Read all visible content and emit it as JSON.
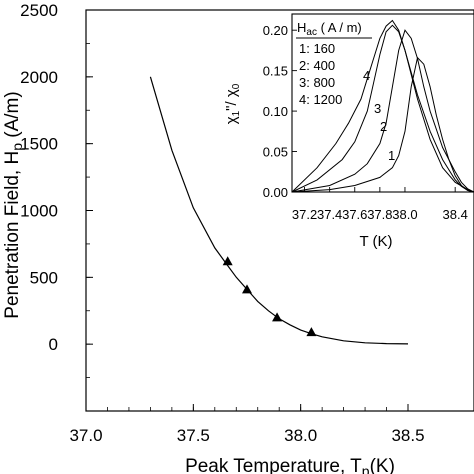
{
  "chart_data": [
    {
      "type": "line",
      "xlabel": "Peak Temperature, T",
      "xlabel_sub": "p",
      "xlabel_unit": "(K)",
      "ylabel": "Penetration Field, H",
      "ylabel_sub": "p",
      "ylabel_unit": " (A/m)",
      "xlim": [
        37.0,
        38.5
      ],
      "ylim": [
        -500,
        2500
      ],
      "xticks": [
        "37.0",
        "37.5",
        "38.0",
        "38.5"
      ],
      "yticks": [
        "0",
        "500",
        "1000",
        "1500",
        "2000",
        "2500"
      ],
      "grid": false,
      "series": [
        {
          "kind": "fit-curve",
          "x": [
            37.3,
            37.4,
            37.5,
            37.6,
            37.65,
            37.7,
            37.75,
            37.8,
            37.85,
            37.9,
            37.95,
            38.0,
            38.05,
            38.1,
            38.2,
            38.3,
            38.4,
            38.5
          ],
          "y": [
            2000,
            1450,
            1020,
            720,
            610,
            500,
            410,
            320,
            250,
            190,
            145,
            105,
            78,
            55,
            25,
            10,
            4,
            2
          ]
        },
        {
          "kind": "markers",
          "marker": "triangle",
          "x": [
            37.66,
            37.75,
            37.89,
            38.05
          ],
          "y": [
            620,
            410,
            200,
            90
          ]
        }
      ]
    },
    {
      "type": "line",
      "inset": true,
      "xlabel": "T (K)",
      "ylabel": "χ\"/χ",
      "ylabel_sub1": "1",
      "ylabel_sub2": "0",
      "xlim": [
        37.1,
        38.55
      ],
      "ylim": [
        0.0,
        0.22
      ],
      "xticks": [
        "37.2",
        "37.4",
        "37.6",
        "37.8",
        "38.0",
        "38.4"
      ],
      "yticks": [
        "0.00",
        "0.05",
        "0.10",
        "0.15",
        "0.20"
      ],
      "legend": {
        "title": "H",
        "title_sub": "ac",
        "title_unit": " ( A / m)",
        "entries": [
          "1: 160",
          "2: 400",
          "3: 800",
          "4: 1200"
        ]
      },
      "series": [
        {
          "name": "1",
          "x": [
            37.1,
            37.4,
            37.6,
            37.8,
            37.9,
            37.95,
            38.0,
            38.05,
            38.1,
            38.15,
            38.2,
            38.25,
            38.3,
            38.35,
            38.4,
            38.45,
            38.5,
            38.55
          ],
          "y": [
            0.0,
            0.003,
            0.008,
            0.018,
            0.03,
            0.045,
            0.075,
            0.13,
            0.166,
            0.158,
            0.13,
            0.095,
            0.065,
            0.04,
            0.02,
            0.008,
            0.002,
            0.0
          ]
        },
        {
          "name": "2",
          "x": [
            37.1,
            37.4,
            37.6,
            37.7,
            37.8,
            37.85,
            37.9,
            37.95,
            38.0,
            38.05,
            38.1,
            38.15,
            38.2,
            38.3,
            38.4,
            38.45,
            38.5,
            38.55
          ],
          "y": [
            0.0,
            0.008,
            0.022,
            0.035,
            0.06,
            0.085,
            0.13,
            0.175,
            0.2,
            0.19,
            0.165,
            0.13,
            0.1,
            0.055,
            0.025,
            0.012,
            0.004,
            0.0
          ]
        },
        {
          "name": "3",
          "x": [
            37.1,
            37.3,
            37.5,
            37.6,
            37.7,
            37.75,
            37.8,
            37.85,
            37.9,
            37.95,
            38.0,
            38.1,
            38.2,
            38.3,
            38.4,
            38.45,
            38.5,
            38.55
          ],
          "y": [
            0.0,
            0.015,
            0.04,
            0.062,
            0.1,
            0.135,
            0.17,
            0.198,
            0.206,
            0.198,
            0.175,
            0.12,
            0.075,
            0.04,
            0.015,
            0.007,
            0.002,
            0.0
          ]
        },
        {
          "name": "4",
          "x": [
            37.1,
            37.3,
            37.45,
            37.55,
            37.65,
            37.7,
            37.75,
            37.8,
            37.85,
            37.9,
            37.95,
            38.0,
            38.1,
            38.2,
            38.3,
            38.4,
            38.5,
            38.55
          ],
          "y": [
            0.0,
            0.03,
            0.06,
            0.085,
            0.115,
            0.14,
            0.165,
            0.19,
            0.205,
            0.212,
            0.2,
            0.175,
            0.115,
            0.065,
            0.03,
            0.012,
            0.003,
            0.0
          ]
        }
      ],
      "curve_labels": [
        "1",
        "2",
        "3",
        "4"
      ]
    }
  ]
}
